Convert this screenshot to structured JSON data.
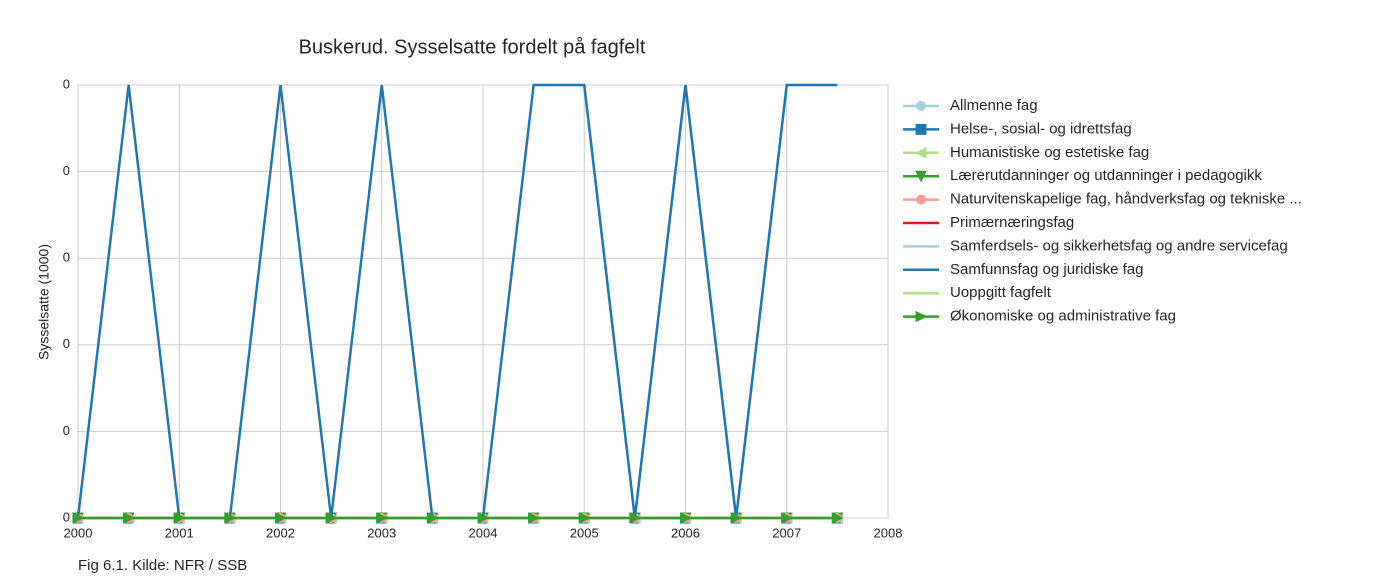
{
  "chart_data": {
    "type": "line",
    "title": "Buskerud. Sysselsatte fordelt på fagfelt",
    "y_label": "Sysselsatte (1000)",
    "caption": "Fig 6.1. Kilde: NFR / SSB",
    "x": [
      2000,
      2000.5,
      2001,
      2001.5,
      2002,
      2002.5,
      2003,
      2003.5,
      2004,
      2004.5,
      2005,
      2005.5,
      2006,
      2006.5,
      2007,
      2007.5
    ],
    "xlim": [
      2000,
      2008
    ],
    "xticks": [
      2000,
      2001,
      2002,
      2003,
      2004,
      2005,
      2006,
      2007,
      2008
    ],
    "ylim": [
      0,
      0.4
    ],
    "yticks": [
      0,
      {
        "value": 0.08,
        "label": "0"
      },
      {
        "value": 0.16,
        "label": "0"
      },
      {
        "value": 0.24,
        "label": "0"
      },
      {
        "value": 0.32,
        "label": "0"
      },
      {
        "value": 0.4,
        "label": "0"
      }
    ],
    "grid": true,
    "legend": "outside right",
    "series": [
      {
        "name": "Allmenne fag",
        "color": "#a6cee3",
        "marker": "circle",
        "values": [
          0,
          0,
          0,
          0,
          0,
          0,
          0,
          0,
          0,
          0,
          0,
          0,
          0,
          0,
          0,
          0
        ]
      },
      {
        "name": "Helse-, sosial- og idrettsfag",
        "color": "#1f78b4",
        "marker": "square",
        "values": [
          0,
          0,
          0,
          0,
          0,
          0,
          0,
          0,
          0,
          0,
          0,
          0,
          0,
          0,
          0,
          0
        ]
      },
      {
        "name": "Humanistiske og estetiske fag",
        "color": "#b2df8a",
        "marker": "triangle-left",
        "values": [
          0,
          0,
          0,
          0,
          0,
          0,
          0,
          0,
          0,
          0,
          0,
          0,
          0,
          0,
          0,
          0
        ]
      },
      {
        "name": "Lærerutdanninger og utdanninger i pedagogikk",
        "color": "#33a02c",
        "marker": "triangle-down",
        "values": [
          0,
          0,
          0,
          0,
          0,
          0,
          0,
          0,
          0,
          0,
          0,
          0,
          0,
          0,
          0,
          0
        ]
      },
      {
        "name": "Naturvitenskapelige fag, håndverksfag og tekniske ...",
        "color": "#fb9a99",
        "marker": "circle",
        "values": [
          0,
          0,
          0,
          0,
          0,
          0,
          0,
          0,
          0,
          0,
          0,
          0,
          0,
          0,
          0,
          0
        ]
      },
      {
        "name": "Primærnæringsfag",
        "color": "#e31a1c",
        "values": [
          0,
          0,
          0,
          0,
          0,
          0,
          0,
          0,
          0,
          0,
          0,
          0,
          0,
          0,
          0,
          0
        ]
      },
      {
        "name": "Samferdsels- og sikkerhetsfag og andre servicefag",
        "color": "#a6cee3",
        "values": [
          null,
          null,
          null,
          null,
          null,
          null,
          null,
          null,
          null,
          0.4,
          0.4,
          0,
          0.4,
          0,
          0.4,
          0.4
        ]
      },
      {
        "name": "Samfunnsfag og juridiske fag",
        "color": "#1f78b4",
        "values": [
          0,
          0.4,
          0,
          0,
          0.4,
          0,
          0.4,
          0,
          0,
          0.4,
          0.4,
          0,
          0.4,
          0,
          0.4,
          0.4
        ]
      },
      {
        "name": "Uoppgitt fagfelt",
        "color": "#b2df8a",
        "values": [
          0,
          0,
          0,
          0,
          0,
          0,
          0,
          0,
          0,
          0,
          0,
          0,
          0,
          0,
          0,
          0
        ]
      },
      {
        "name": "Økonomiske og administrative fag",
        "color": "#33a02c",
        "marker": "triangle-right",
        "values": [
          0,
          0,
          0,
          0,
          0,
          0,
          0,
          0,
          0,
          0,
          0,
          0,
          0,
          0,
          0,
          0
        ]
      }
    ]
  }
}
